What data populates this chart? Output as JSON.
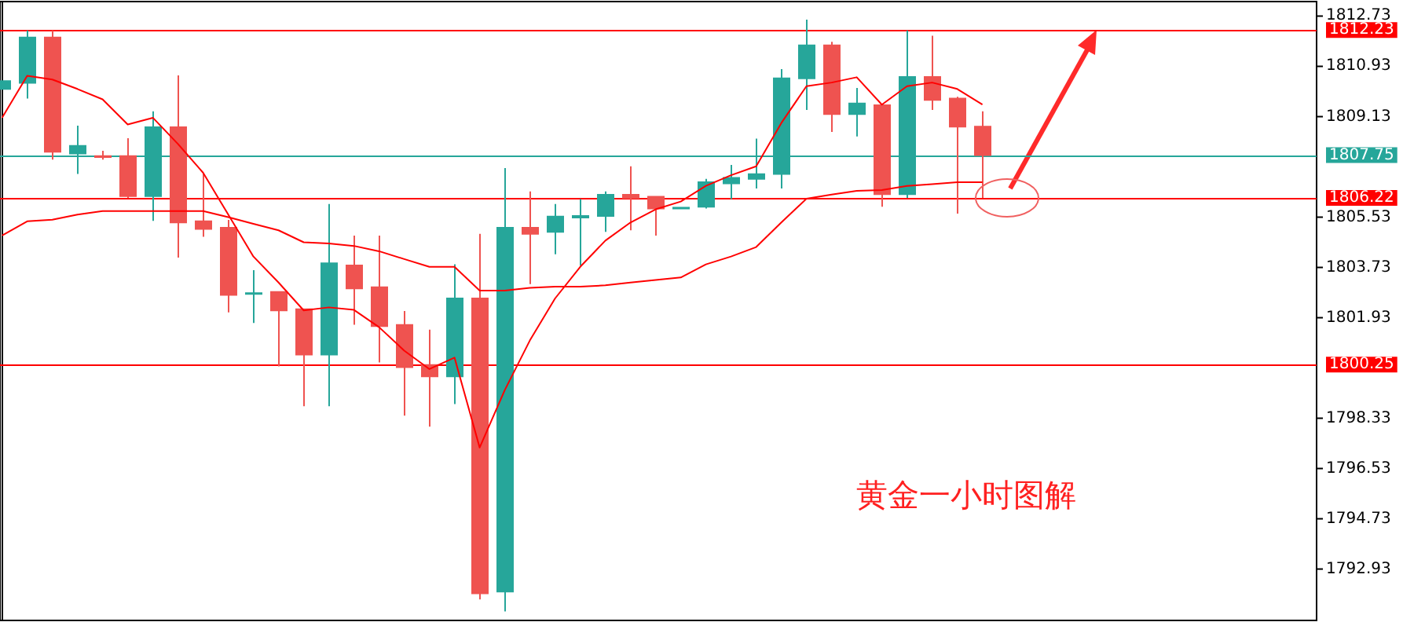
{
  "chart_data": {
    "type": "candlestick",
    "categories": [
      null,
      null,
      null,
      null,
      null,
      null,
      null,
      null,
      null,
      null,
      null,
      null,
      null,
      null,
      null,
      null,
      null,
      null,
      null,
      null,
      null,
      null,
      null,
      null,
      null,
      null,
      null,
      null,
      null,
      null,
      null,
      null,
      null,
      null,
      null,
      null,
      null,
      null,
      null,
      null
    ],
    "series": [
      {
        "type": "candlestick",
        "ohlc": [
          [
            1810.12,
            1810.4,
            1810.12,
            1810.4
          ],
          [
            1810.34,
            1812.22,
            1809.78,
            1811.96
          ],
          [
            1811.96,
            1812.22,
            1807.59,
            1807.87
          ],
          [
            1807.81,
            1808.81,
            1807.08,
            1808.08
          ],
          [
            1807.72,
            1807.91,
            1807.59,
            1807.68
          ],
          [
            1807.72,
            1808.36,
            1806.22,
            1806.28
          ],
          [
            1806.28,
            1809.32,
            1805.4,
            1808.75
          ],
          [
            1808.75,
            1810.61,
            1804.08,
            1805.34
          ],
          [
            1805.38,
            1807.12,
            1804.83,
            1805.11
          ],
          [
            1805.15,
            1805.43,
            1802.12,
            1802.75
          ],
          [
            1802.78,
            1803.63,
            1801.74,
            1802.81
          ],
          [
            1802.85,
            1802.85,
            1800.19,
            1802.19
          ],
          [
            1802.23,
            1802.23,
            1798.76,
            1800.61
          ],
          [
            1800.61,
            1806.0,
            1798.76,
            1803.88
          ],
          [
            1803.8,
            1804.87,
            1801.68,
            1802.98
          ],
          [
            1803.02,
            1804.87,
            1800.33,
            1801.63
          ],
          [
            1801.67,
            1802.17,
            1798.42,
            1800.16
          ],
          [
            1800.24,
            1801.5,
            1798.03,
            1799.83
          ],
          [
            1799.83,
            1803.84,
            1798.84,
            1802.62
          ],
          [
            1802.62,
            1804.93,
            1791.84,
            1792.06
          ],
          [
            1792.12,
            1807.29,
            1791.41,
            1805.15
          ],
          [
            1805.15,
            1806.45,
            1803.13,
            1804.93
          ],
          [
            1805.0,
            1806.0,
            1804.2,
            1805.55
          ],
          [
            1805.52,
            1806.18,
            1803.8,
            1805.57
          ],
          [
            1805.57,
            1806.45,
            1805.0,
            1806.33
          ],
          [
            1806.33,
            1807.35,
            1805.06,
            1806.22
          ],
          [
            1806.26,
            1806.26,
            1804.87,
            1805.84
          ],
          [
            1805.84,
            1805.87,
            1805.84,
            1805.87
          ],
          [
            1805.9,
            1806.9,
            1805.84,
            1806.78
          ],
          [
            1806.74,
            1807.4,
            1806.18,
            1806.94
          ],
          [
            1806.9,
            1808.34,
            1806.56,
            1807.07
          ],
          [
            1807.08,
            1810.83,
            1806.56,
            1810.5
          ],
          [
            1810.5,
            1812.6,
            1809.37,
            1811.68
          ],
          [
            1811.68,
            1811.81,
            1808.58,
            1809.22
          ],
          [
            1809.22,
            1810.16,
            1808.42,
            1809.6
          ],
          [
            1809.54,
            1809.54,
            1805.9,
            1806.35
          ],
          [
            1806.35,
            1812.22,
            1806.22,
            1810.55
          ],
          [
            1810.55,
            1812.03,
            1809.37,
            1809.73
          ],
          [
            1809.78,
            1809.84,
            1805.66,
            1808.77
          ],
          [
            1808.77,
            1809.32,
            1806.22,
            1807.75
          ]
        ],
        "colors": [
          "#26a69a",
          "#26a69a",
          "#ef5350",
          "#26a69a",
          "#ef5350",
          "#ef5350",
          "#26a69a",
          "#ef5350",
          "#ef5350",
          "#ef5350",
          "#26a69a",
          "#ef5350",
          "#ef5350",
          "#26a69a",
          "#ef5350",
          "#ef5350",
          "#ef5350",
          "#ef5350",
          "#26a69a",
          "#ef5350",
          "#26a69a",
          "#ef5350",
          "#26a69a",
          "#26a69a",
          "#26a69a",
          "#ef5350",
          "#ef5350",
          "#26a69a",
          "#26a69a",
          "#26a69a",
          "#26a69a",
          "#26a69a",
          "#26a69a",
          "#ef5350",
          "#26a69a",
          "#ef5350",
          "#26a69a",
          "#ef5350",
          "#ef5350",
          "#ef5350"
        ]
      },
      {
        "type": "line",
        "color": "#ff0000",
        "values": [
          1809.09,
          1810.59,
          1810.46,
          1810.12,
          1809.75,
          1808.85,
          1809.09,
          1808.15,
          1807.12,
          1805.62,
          1804.12,
          1803.19,
          1802.19,
          1802.3,
          1802.21,
          1801.59,
          1800.75,
          1800.09,
          1800.5,
          1797.28,
          1799.34,
          1801.12,
          1802.62,
          1803.75,
          1804.69,
          1805.34,
          1805.81,
          1806.09,
          1806.65,
          1807.03,
          1807.35,
          1808.9,
          1810.22,
          1810.35,
          1810.54,
          1809.56,
          1810.22,
          1810.35,
          1810.12,
          1809.56
        ]
      },
      {
        "type": "line",
        "color": "#ff0000",
        "values": [
          1804.87,
          1805.38,
          1805.44,
          1805.62,
          1805.75,
          1805.75,
          1805.75,
          1805.75,
          1805.75,
          1805.53,
          1805.29,
          1805.06,
          1804.63,
          1804.59,
          1804.5,
          1804.31,
          1804.03,
          1803.75,
          1803.75,
          1802.9,
          1802.9,
          1803.0,
          1803.04,
          1803.04,
          1803.09,
          1803.19,
          1803.28,
          1803.37,
          1803.84,
          1804.12,
          1804.46,
          1805.34,
          1806.19,
          1806.34,
          1806.47,
          1806.5,
          1806.65,
          1806.71,
          1806.78,
          1806.78
        ]
      }
    ],
    "ylim": [
      1791.09,
      1813.25
    ],
    "yticks": [
      1792.93,
      1794.73,
      1796.53,
      1798.33,
      1801.93,
      1803.73,
      1805.53,
      1809.13,
      1810.93,
      1812.73
    ],
    "ref_lines": [
      {
        "axis": "y",
        "value": 1812.23,
        "label": "1812.23",
        "color": "#ff0000"
      },
      {
        "axis": "y",
        "value": 1807.75,
        "label": "1807.75",
        "color": "#26a69a"
      },
      {
        "axis": "y",
        "value": 1806.22,
        "label": "1806.22",
        "color": "#ff0000"
      },
      {
        "axis": "y",
        "value": 1800.25,
        "label": "1800.25",
        "color": "#ff0000"
      }
    ],
    "annotations": [
      "黄金一小时图解"
    ],
    "tick_labels": "y",
    "grid": false,
    "marker": "none"
  }
}
